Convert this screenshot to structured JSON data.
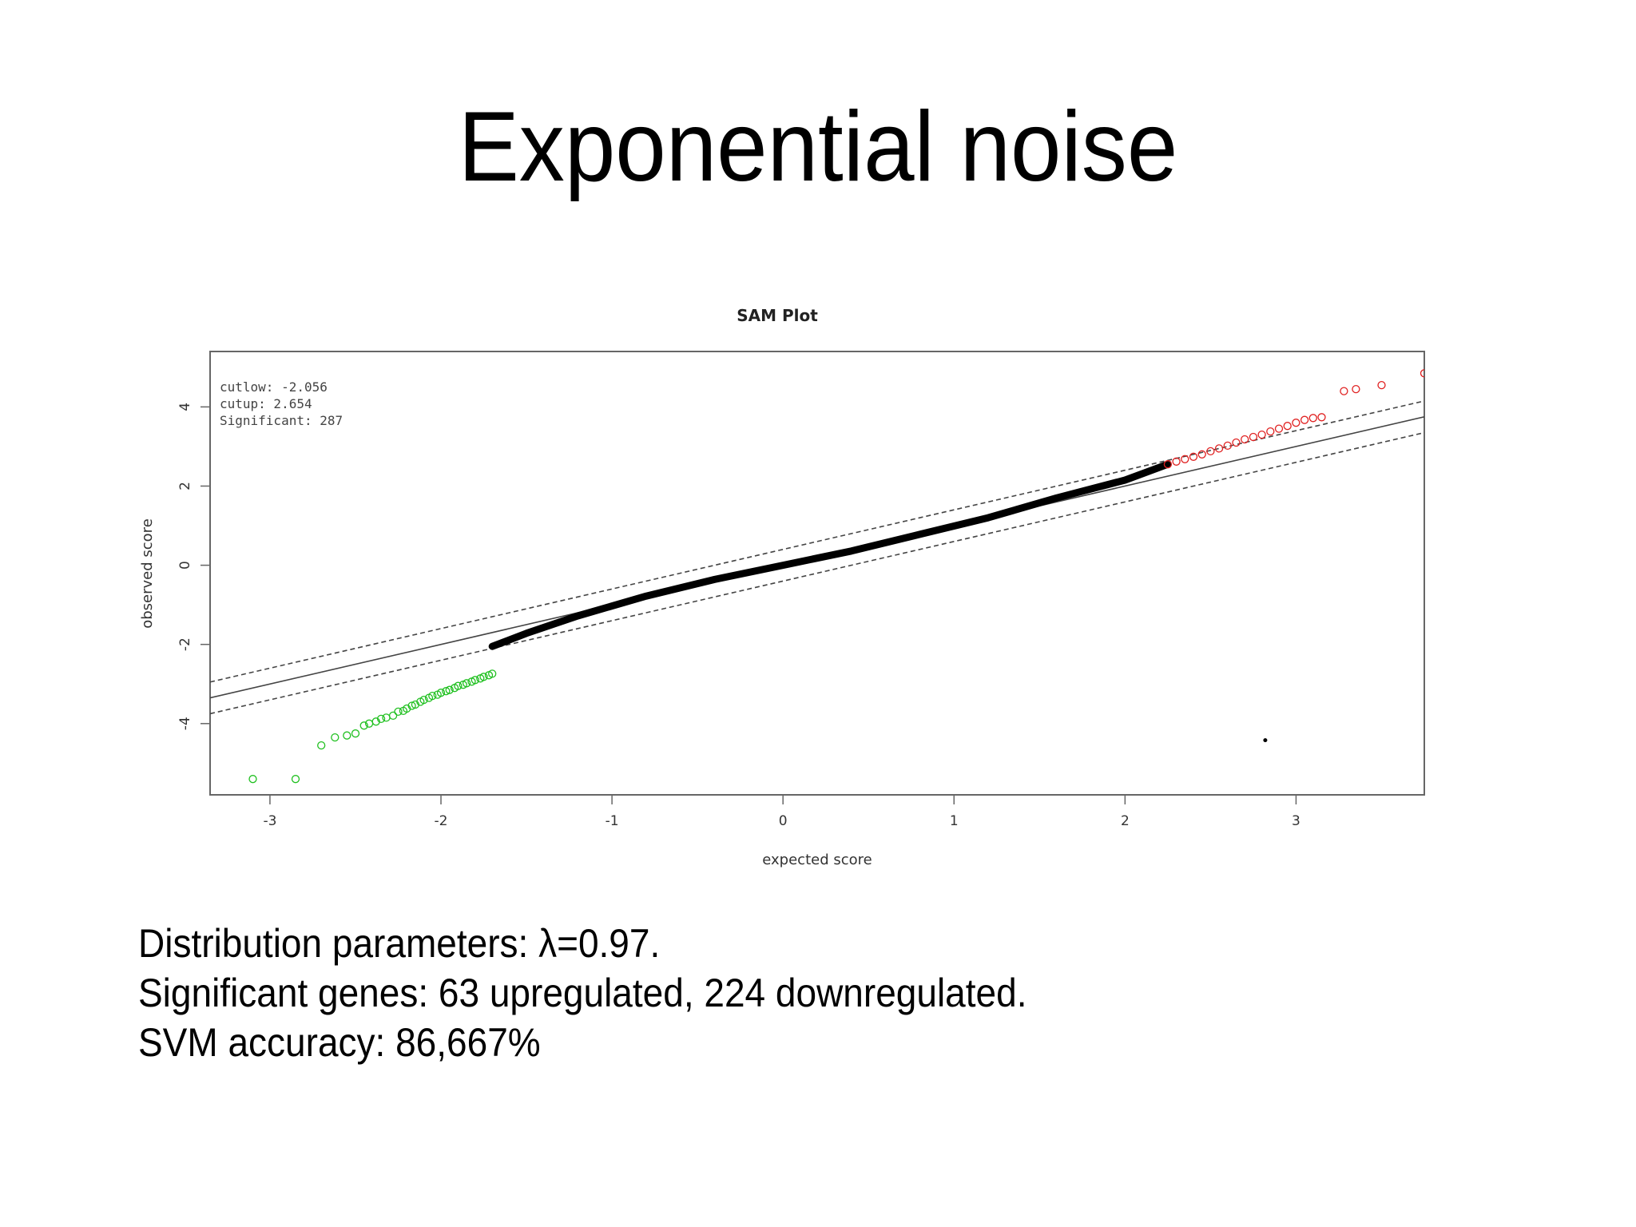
{
  "slide": {
    "title": "Exponential noise",
    "caption_lines": [
      "Distribution parameters: λ=0.97.",
      "Significant genes: 63 upregulated, 224 downregulated.",
      "SVM accuracy: 86,667%"
    ]
  },
  "chart_data": {
    "type": "scatter",
    "title": "SAM Plot",
    "xlabel": "expected score",
    "ylabel": "observed score",
    "xlim": [
      -3.35,
      3.75
    ],
    "ylim": [
      -5.8,
      5.4
    ],
    "xticks": [
      -3,
      -2,
      -1,
      0,
      1,
      2,
      3
    ],
    "yticks": [
      -4,
      -2,
      0,
      2,
      4
    ],
    "grid": false,
    "annotations": [
      "cutlow: -2.056",
      "cutup: 2.654",
      "Significant: 287"
    ],
    "reference_lines": {
      "identity": {
        "slope": 1.0,
        "intercept": 0.0
      },
      "upper_delta": {
        "slope": 1.0,
        "intercept": 0.4
      },
      "lower_delta": {
        "slope": 1.0,
        "intercept": -0.4
      }
    },
    "colors": {
      "upregulated": "#e02020",
      "downregulated": "#20c020",
      "not_significant": "#000000",
      "reference": "#444444"
    },
    "series": [
      {
        "category": "downregulated",
        "marker": "open-circle",
        "points": [
          [
            -3.1,
            -5.4
          ],
          [
            -2.85,
            -5.4
          ],
          [
            -2.7,
            -4.55
          ],
          [
            -2.62,
            -4.35
          ],
          [
            -2.55,
            -4.3
          ],
          [
            -2.5,
            -4.25
          ],
          [
            -2.45,
            -4.05
          ],
          [
            -2.42,
            -4.0
          ],
          [
            -2.38,
            -3.95
          ],
          [
            -2.35,
            -3.88
          ],
          [
            -2.32,
            -3.85
          ],
          [
            -2.28,
            -3.8
          ],
          [
            -2.25,
            -3.7
          ],
          [
            -2.22,
            -3.68
          ],
          [
            -2.2,
            -3.62
          ],
          [
            -2.17,
            -3.55
          ],
          [
            -2.15,
            -3.52
          ],
          [
            -2.12,
            -3.45
          ],
          [
            -2.1,
            -3.4
          ],
          [
            -2.07,
            -3.35
          ],
          [
            -2.05,
            -3.3
          ],
          [
            -2.02,
            -3.27
          ],
          [
            -2.0,
            -3.22
          ],
          [
            -1.97,
            -3.18
          ],
          [
            -1.95,
            -3.15
          ],
          [
            -1.92,
            -3.1
          ],
          [
            -1.9,
            -3.05
          ],
          [
            -1.87,
            -3.02
          ],
          [
            -1.85,
            -2.98
          ],
          [
            -1.82,
            -2.94
          ],
          [
            -1.8,
            -2.9
          ],
          [
            -1.77,
            -2.86
          ],
          [
            -1.75,
            -2.82
          ],
          [
            -1.72,
            -2.78
          ],
          [
            -1.7,
            -2.74
          ]
        ]
      },
      {
        "category": "not_significant",
        "marker": "filled-curve",
        "points": [
          [
            -1.7,
            -2.05
          ],
          [
            -1.5,
            -1.72
          ],
          [
            -1.2,
            -1.28
          ],
          [
            -0.8,
            -0.78
          ],
          [
            -0.4,
            -0.36
          ],
          [
            0.0,
            0.0
          ],
          [
            0.4,
            0.36
          ],
          [
            0.8,
            0.78
          ],
          [
            1.2,
            1.2
          ],
          [
            1.6,
            1.7
          ],
          [
            2.0,
            2.15
          ],
          [
            2.25,
            2.55
          ]
        ]
      },
      {
        "category": "upregulated",
        "marker": "open-circle",
        "points": [
          [
            2.25,
            2.55
          ],
          [
            2.3,
            2.62
          ],
          [
            2.35,
            2.68
          ],
          [
            2.4,
            2.74
          ],
          [
            2.45,
            2.8
          ],
          [
            2.5,
            2.88
          ],
          [
            2.55,
            2.95
          ],
          [
            2.6,
            3.02
          ],
          [
            2.65,
            3.1
          ],
          [
            2.7,
            3.18
          ],
          [
            2.75,
            3.24
          ],
          [
            2.8,
            3.3
          ],
          [
            2.85,
            3.38
          ],
          [
            2.9,
            3.45
          ],
          [
            2.95,
            3.52
          ],
          [
            3.0,
            3.6
          ],
          [
            3.05,
            3.67
          ],
          [
            3.1,
            3.72
          ],
          [
            3.15,
            3.74
          ],
          [
            3.28,
            4.4
          ],
          [
            3.35,
            4.45
          ],
          [
            3.5,
            4.55
          ],
          [
            3.75,
            4.85
          ]
        ]
      },
      {
        "category": "not_significant",
        "marker": "dot",
        "points": [
          [
            2.82,
            -4.42
          ]
        ]
      }
    ]
  }
}
